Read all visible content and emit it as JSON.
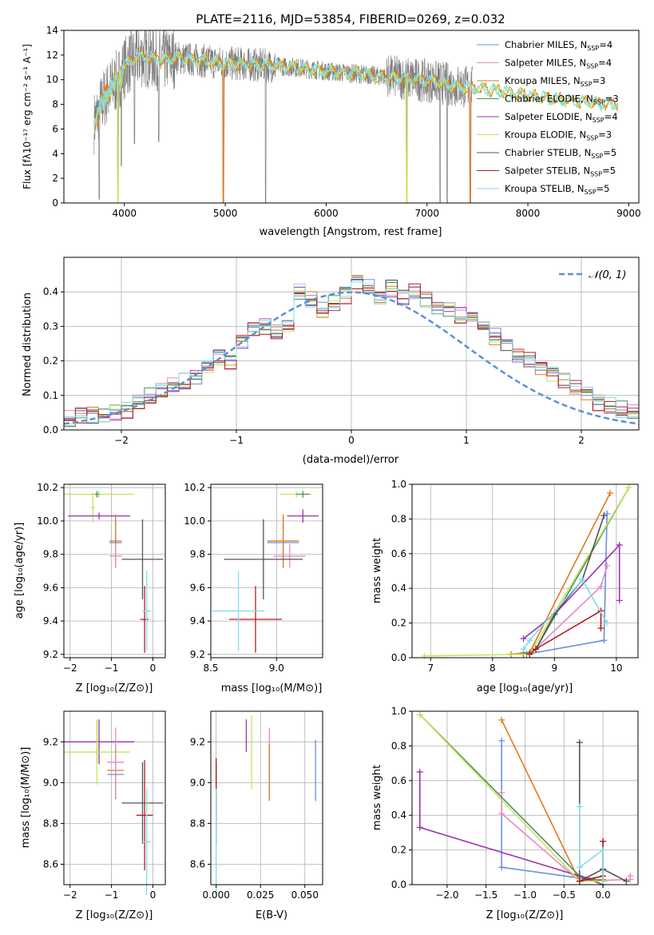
{
  "figure": {
    "title": "PLATE=2116, MJD=53854, FIBERID=0269, z=0.032"
  },
  "legend_entries": [
    {
      "label": "Chabrier MILES, N",
      "sub": "SSP",
      "suffix": "=4",
      "color": "#6a8fdc"
    },
    {
      "label": "Salpeter MILES, N",
      "sub": "SSP",
      "suffix": "=4",
      "color": "#e48ac1"
    },
    {
      "label": "Kroupa MILES, N",
      "sub": "SSP",
      "suffix": "=3",
      "color": "#e07a20"
    },
    {
      "label": "Chabrier ELODIE, N",
      "sub": "SSP",
      "suffix": "=3",
      "color": "#4d8f63"
    },
    {
      "label": "Salpeter ELODIE, N",
      "sub": "SSP",
      "suffix": "=4",
      "color": "#9b32ad"
    },
    {
      "label": "Kroupa ELODIE, N",
      "sub": "SSP",
      "suffix": "=3",
      "color": "#c7e35c"
    },
    {
      "label": "Chabrier STELIB, N",
      "sub": "SSP",
      "suffix": "=5",
      "color": "#555555"
    },
    {
      "label": "Salpeter STELIB, N",
      "sub": "SSP",
      "suffix": "=5",
      "color": "#b51c1c"
    },
    {
      "label": "Kroupa STELIB, N",
      "sub": "SSP",
      "suffix": "=5",
      "color": "#84dde6"
    }
  ],
  "axis_labels": {
    "spectrum_x": "wavelength [Angstrom, rest frame]",
    "spectrum_y": "Flux [fλ10⁻¹⁷ erg cm⁻² s⁻¹ A⁻¹]",
    "resid_x": "(data-model)/error",
    "resid_y": "Normed distribution",
    "z_label": "Z [log₁₀(Z/Z⊙)]",
    "age_label": "age  [log₁₀(age/yr)]",
    "mass_label": "mass [log₁₀(M/M⊙)]",
    "ebv_label": "E(B-V)",
    "weight_label": "mass weight",
    "normal_label": "𝒩(0, 1)"
  },
  "chart_data": [
    {
      "id": "spectrum",
      "type": "line",
      "xlim": [
        3400,
        9100
      ],
      "ylim": [
        0,
        14
      ],
      "xticks": [
        "4000",
        "5000",
        "6000",
        "7000",
        "8000",
        "9000"
      ],
      "yticks": [
        "0",
        "2",
        "4",
        "6",
        "8",
        "10",
        "12",
        "14"
      ],
      "continuum": {
        "x": [
          3700,
          3750,
          3800,
          3850,
          3900,
          3950,
          4000,
          4100,
          4200,
          4300,
          4400,
          4500,
          4700,
          4900,
          5100,
          5300,
          5500,
          5700,
          5900,
          6100,
          6300,
          6500,
          6700,
          6900,
          7100,
          7300,
          7500,
          7700,
          7900,
          8100,
          8300,
          8500,
          8700,
          8900
        ],
        "y": [
          6.5,
          7.5,
          8.5,
          9.2,
          9.6,
          10.2,
          11.0,
          11.8,
          11.9,
          11.7,
          11.6,
          11.8,
          11.6,
          11.4,
          11.3,
          11.2,
          11.1,
          11.0,
          10.8,
          10.6,
          10.5,
          10.3,
          10.2,
          10.0,
          9.8,
          9.5,
          9.3,
          9.1,
          8.9,
          8.6,
          8.4,
          8.2,
          8.1,
          8.0
        ]
      },
      "data_range": [
        3700,
        7450
      ],
      "model_range": [
        3700,
        8900
      ],
      "dips": [
        {
          "x": 3750,
          "y": 0.3
        },
        {
          "x": 3935,
          "y": 0.0
        },
        {
          "x": 3970,
          "y": 3.0
        },
        {
          "x": 4100,
          "y": 4.8
        },
        {
          "x": 4340,
          "y": 5.0
        },
        {
          "x": 4980,
          "y": 0.0
        },
        {
          "x": 5400,
          "y": 0.0
        },
        {
          "x": 6800,
          "y": 0.0
        },
        {
          "x": 7130,
          "y": 0.0
        },
        {
          "x": 7200,
          "y": 0.0
        },
        {
          "x": 7430,
          "y": 0.0
        }
      ]
    },
    {
      "id": "residuals",
      "type": "bar",
      "xlim": [
        -2.5,
        2.5
      ],
      "ylim": [
        0,
        0.5
      ],
      "xticks": [
        "−2",
        "−1",
        "0",
        "1",
        "2"
      ],
      "yticks": [
        "0.0",
        "0.1",
        "0.2",
        "0.3",
        "0.4"
      ],
      "bin_width": 0.1,
      "series_values": [
        0.035,
        0.04,
        0.042,
        0.045,
        0.05,
        0.055,
        0.085,
        0.1,
        0.11,
        0.13,
        0.14,
        0.15,
        0.19,
        0.21,
        0.2,
        0.25,
        0.29,
        0.3,
        0.28,
        0.31,
        0.4,
        0.38,
        0.35,
        0.37,
        0.39,
        0.43,
        0.42,
        0.38,
        0.41,
        0.38,
        0.4,
        0.38,
        0.36,
        0.35,
        0.33,
        0.32,
        0.3,
        0.27,
        0.25,
        0.22,
        0.2,
        0.18,
        0.16,
        0.14,
        0.12,
        0.1,
        0.08,
        0.07,
        0.06,
        0.05
      ]
    },
    {
      "id": "z_age",
      "type": "scatter",
      "xlim": [
        -2.15,
        0.3
      ],
      "ylim": [
        9.18,
        10.22
      ],
      "xticks": [
        "−2",
        "−1",
        "0"
      ],
      "yticks": [
        "9.2",
        "9.4",
        "9.6",
        "9.8",
        "10.0",
        "10.2"
      ],
      "points": [
        {
          "x": -1.3,
          "xerr": 0.85,
          "y": 10.16,
          "yerr": 0.02,
          "series": 5
        },
        {
          "x": -1.35,
          "xerr": 0.05,
          "y": 10.16,
          "yerr": 0.02,
          "series": 3
        },
        {
          "x": -1.45,
          "xerr": 0.05,
          "y": 10.08,
          "yerr": 0.09,
          "series": 5
        },
        {
          "x": -1.3,
          "xerr": 0.75,
          "y": 10.03,
          "yerr": 0.02,
          "series": 4
        },
        {
          "x": -0.9,
          "xerr": 0.15,
          "y": 9.87,
          "yerr": 0.15,
          "series": 0
        },
        {
          "x": -0.9,
          "xerr": 0.15,
          "y": 9.88,
          "yerr": 0.16,
          "series": 2
        },
        {
          "x": -0.9,
          "xerr": 0.15,
          "y": 9.79,
          "yerr": 0.07,
          "series": 1
        },
        {
          "x": -0.25,
          "xerr": 0.5,
          "y": 9.77,
          "yerr": 0.24,
          "series": 6
        },
        {
          "x": -0.2,
          "xerr": 0.1,
          "y": 9.41,
          "yerr": 0.2,
          "series": 7
        },
        {
          "x": -0.15,
          "xerr": 0.1,
          "y": 9.46,
          "yerr": 0.24,
          "series": 8
        }
      ]
    },
    {
      "id": "mass_age",
      "type": "scatter",
      "xlim": [
        8.5,
        9.35
      ],
      "ylim": [
        9.18,
        10.22
      ],
      "xticks": [
        "8.5",
        "9.0"
      ],
      "yticks": [
        "9.2",
        "9.4",
        "9.6",
        "9.8",
        "10.0",
        "10.2"
      ],
      "points": [
        {
          "x": 9.15,
          "xerr": 0.12,
          "y": 10.16,
          "yerr": 0.02,
          "series": 5
        },
        {
          "x": 9.2,
          "xerr": 0.05,
          "y": 10.16,
          "yerr": 0.02,
          "series": 3
        },
        {
          "x": 9.2,
          "xerr": 0.12,
          "y": 10.03,
          "yerr": 0.04,
          "series": 4
        },
        {
          "x": 9.05,
          "xerr": 0.12,
          "y": 9.87,
          "yerr": 0.15,
          "series": 0
        },
        {
          "x": 9.05,
          "xerr": 0.12,
          "y": 9.88,
          "yerr": 0.16,
          "series": 2
        },
        {
          "x": 9.1,
          "xerr": 0.12,
          "y": 9.79,
          "yerr": 0.07,
          "series": 1
        },
        {
          "x": 8.9,
          "xerr": 0.3,
          "y": 9.77,
          "yerr": 0.24,
          "series": 6
        },
        {
          "x": 8.84,
          "xerr": 0.2,
          "y": 9.41,
          "yerr": 0.2,
          "series": 7
        },
        {
          "x": 8.71,
          "xerr": 0.2,
          "y": 9.46,
          "yerr": 0.24,
          "series": 8
        }
      ]
    },
    {
      "id": "age_weight",
      "type": "line",
      "xlim": [
        6.7,
        10.35
      ],
      "ylim": [
        0,
        1
      ],
      "xticks": [
        "7",
        "8",
        "9",
        "10"
      ],
      "yticks": [
        "0.0",
        "0.2",
        "0.4",
        "0.6",
        "0.8",
        "1.0"
      ],
      "series_points": [
        {
          "series": 0,
          "x": [
            8.5,
            8.55,
            9.8,
            9.85
          ],
          "y": [
            0.03,
            0.02,
            0.1,
            0.83
          ]
        },
        {
          "series": 1,
          "x": [
            8.5,
            8.6,
            9.75,
            9.85
          ],
          "y": [
            0.03,
            0.02,
            0.41,
            0.53
          ]
        },
        {
          "series": 2,
          "x": [
            8.3,
            8.6,
            9.9
          ],
          "y": [
            0.02,
            0.03,
            0.95
          ]
        },
        {
          "series": 3,
          "x": [
            8.5,
            8.7,
            10.2
          ],
          "y": [
            0.02,
            0.05,
            0.98
          ]
        },
        {
          "series": 4,
          "x": [
            8.5,
            9.0,
            10.05,
            10.05
          ],
          "y": [
            0.11,
            0.25,
            0.65,
            0.33
          ]
        },
        {
          "series": 5,
          "x": [
            6.9,
            8.6,
            10.2
          ],
          "y": [
            0.01,
            0.02,
            0.98
          ]
        },
        {
          "series": 6,
          "x": [
            8.6,
            8.7,
            9.0,
            9.45,
            9.8
          ],
          "y": [
            0.02,
            0.05,
            0.25,
            0.45,
            0.82
          ]
        },
        {
          "series": 7,
          "x": [
            8.6,
            8.7,
            9.75,
            9.75
          ],
          "y": [
            0.02,
            0.05,
            0.27,
            0.17
          ]
        },
        {
          "series": 8,
          "x": [
            8.5,
            8.6,
            9.45,
            9.85
          ],
          "y": [
            0.05,
            0.1,
            0.45,
            0.2
          ]
        }
      ]
    },
    {
      "id": "z_mass",
      "type": "scatter",
      "xlim": [
        -2.15,
        0.3
      ],
      "ylim": [
        8.5,
        9.35
      ],
      "xticks": [
        "−2",
        "−1",
        "0"
      ],
      "yticks": [
        "8.6",
        "8.8",
        "9.0",
        "9.2"
      ],
      "points": [
        {
          "x": -1.3,
          "xerr": 0.85,
          "y": 9.2,
          "yerr": 0.11,
          "series": 4
        },
        {
          "x": -1.35,
          "xerr": 0.05,
          "y": 9.2,
          "yerr": 0.1,
          "series": 3
        },
        {
          "x": -1.35,
          "xerr": 0.8,
          "y": 9.15,
          "yerr": 0.16,
          "series": 5
        },
        {
          "x": -0.9,
          "xerr": 0.2,
          "y": 9.04,
          "yerr": 0.12,
          "series": 0
        },
        {
          "x": -0.9,
          "xerr": 0.2,
          "y": 9.06,
          "yerr": 0.14,
          "series": 2
        },
        {
          "x": -0.9,
          "xerr": 0.2,
          "y": 9.1,
          "yerr": 0.17,
          "series": 1
        },
        {
          "x": -0.25,
          "xerr": 0.5,
          "y": 8.9,
          "yerr": 0.2,
          "series": 6
        },
        {
          "x": -0.2,
          "xerr": 0.2,
          "y": 8.84,
          "yerr": 0.27,
          "series": 7
        },
        {
          "x": -0.15,
          "xerr": 0.1,
          "y": 8.71,
          "yerr": 0.26,
          "series": 8
        }
      ]
    },
    {
      "id": "ebv_mass",
      "type": "scatter",
      "xlim": [
        -0.003,
        0.06
      ],
      "ylim": [
        8.5,
        9.35
      ],
      "xticks": [
        "0.000",
        "0.025",
        "0.050"
      ],
      "yticks": [
        "8.6",
        "8.8",
        "9.0",
        "9.2"
      ],
      "points": [
        {
          "x": 0.056,
          "y": 9.06,
          "yerr": 0.15,
          "series": 0
        },
        {
          "x": 0.03,
          "y": 9.1,
          "yerr": 0.17,
          "series": 1
        },
        {
          "x": 0.03,
          "y": 9.05,
          "yerr": 0.14,
          "series": 2
        },
        {
          "x": 0.017,
          "y": 9.23,
          "yerr": 0.08,
          "series": 4
        },
        {
          "x": 0.02,
          "y": 9.15,
          "yerr": 0.18,
          "series": 5
        },
        {
          "x": 0.0,
          "y": 8.9,
          "yerr": 0.2,
          "series": 6
        },
        {
          "x": 0.0,
          "y": 8.95,
          "yerr": 0.17,
          "series": 7
        },
        {
          "x": 0.0,
          "y": 8.71,
          "yerr": 0.26,
          "series": 8
        }
      ]
    },
    {
      "id": "z_weight",
      "type": "line",
      "xlim": [
        -2.45,
        0.45
      ],
      "ylim": [
        0,
        1
      ],
      "xticks": [
        "−2.0",
        "−1.5",
        "−1.0",
        "−0.5",
        "0.0"
      ],
      "yticks": [
        "0.0",
        "0.2",
        "0.4",
        "0.6",
        "0.8",
        "1.0"
      ],
      "series_points": [
        {
          "series": 0,
          "x": [
            -1.3,
            -1.3,
            0.0,
            0.0
          ],
          "y": [
            0.83,
            0.1,
            0.02,
            0.25
          ]
        },
        {
          "series": 1,
          "x": [
            -1.3,
            -1.3,
            -0.3,
            0.35,
            0.35
          ],
          "y": [
            0.53,
            0.41,
            0.02,
            0.03,
            0.05
          ]
        },
        {
          "series": 2,
          "x": [
            -1.3,
            -0.3,
            0.0
          ],
          "y": [
            0.95,
            0.02,
            0.03
          ]
        },
        {
          "series": 3,
          "x": [
            -2.35,
            -0.3,
            0.0
          ],
          "y": [
            0.98,
            0.05,
            0.02
          ]
        },
        {
          "series": 4,
          "x": [
            -2.35,
            -2.35,
            -0.3,
            0.0
          ],
          "y": [
            0.65,
            0.33,
            0.05,
            0.0
          ]
        },
        {
          "series": 5,
          "x": [
            -2.35,
            -0.3,
            0.0
          ],
          "y": [
            0.98,
            0.02,
            0.02
          ]
        },
        {
          "series": 6,
          "x": [
            -0.3,
            -0.3,
            0.0,
            0.3
          ],
          "y": [
            0.82,
            0.02,
            0.09,
            0.02
          ]
        },
        {
          "series": 7,
          "x": [
            -0.3,
            0.0,
            0.0
          ],
          "y": [
            0.02,
            0.05,
            0.25
          ]
        },
        {
          "series": 8,
          "x": [
            -0.3,
            -0.3,
            0.0,
            0.0
          ],
          "y": [
            0.45,
            0.1,
            0.2,
            0.0
          ]
        }
      ]
    }
  ]
}
